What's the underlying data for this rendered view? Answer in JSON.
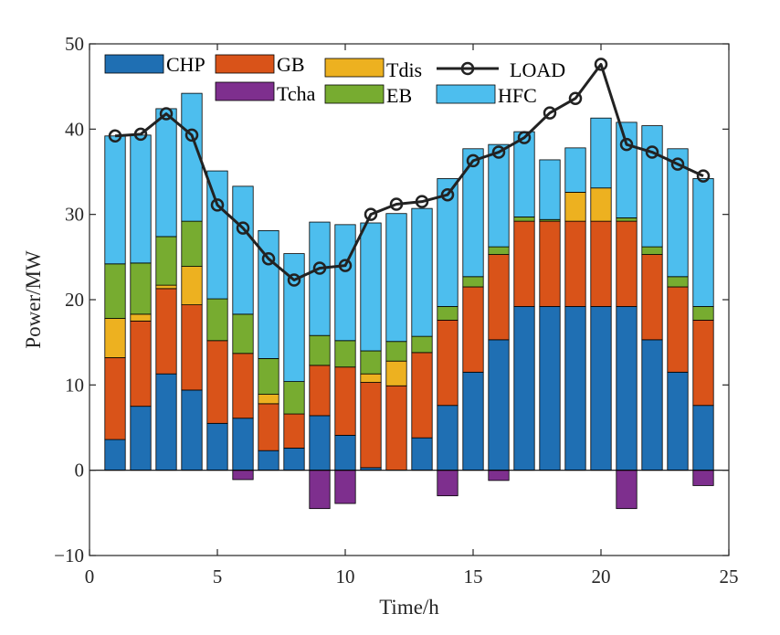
{
  "chart_data": {
    "type": "bar",
    "stacked": true,
    "title": "",
    "xlabel": "Time/h",
    "ylabel": "Power/MW",
    "xlim": [
      0,
      25
    ],
    "ylim": [
      -10,
      50
    ],
    "xticks": [
      0,
      5,
      10,
      15,
      20,
      25
    ],
    "yticks": [
      -10,
      0,
      10,
      20,
      30,
      40,
      50
    ],
    "legend_position": "top",
    "categories": [
      1,
      2,
      3,
      4,
      5,
      6,
      7,
      8,
      9,
      10,
      11,
      12,
      13,
      14,
      15,
      16,
      17,
      18,
      19,
      20,
      21,
      22,
      23,
      24
    ],
    "series": [
      {
        "name": "CHP",
        "color": "#1f6fb3",
        "values": [
          3.6,
          7.5,
          11.3,
          9.4,
          5.5,
          6.1,
          2.3,
          2.6,
          6.4,
          4.1,
          0.3,
          0,
          3.8,
          7.6,
          11.5,
          15.3,
          19.2,
          19.2,
          19.2,
          19.2,
          19.2,
          15.3,
          11.5,
          7.6
        ]
      },
      {
        "name": "GB",
        "color": "#d95319",
        "values": [
          9.6,
          10.0,
          10.0,
          10.0,
          9.7,
          7.6,
          5.5,
          4.0,
          5.9,
          8.0,
          10.0,
          9.9,
          10.0,
          10.0,
          10.0,
          10.0,
          10.0,
          10.0,
          10.0,
          10.0,
          10.0,
          10.0,
          10.0,
          10.0
        ]
      },
      {
        "name": "Tdis",
        "color": "#edb120",
        "values": [
          4.6,
          0.8,
          0.4,
          4.5,
          0,
          0,
          1.1,
          0,
          0,
          0,
          1.0,
          2.9,
          0,
          0,
          0,
          0,
          0,
          0,
          3.4,
          3.9,
          0,
          0,
          0,
          0
        ]
      },
      {
        "name": "Tcha",
        "color": "#7e2f8e",
        "values": [
          0,
          0,
          0,
          0,
          0,
          -1.1,
          0,
          0,
          -4.5,
          -3.9,
          0,
          0,
          0,
          -3.0,
          0,
          -1.2,
          0,
          0,
          0,
          0,
          -4.5,
          0,
          0,
          -1.8
        ]
      },
      {
        "name": "EB",
        "color": "#77ac30",
        "values": [
          6.4,
          6.0,
          5.7,
          5.3,
          4.9,
          4.6,
          4.2,
          3.8,
          3.5,
          3.1,
          2.7,
          2.3,
          1.9,
          1.6,
          1.2,
          0.9,
          0.5,
          0.2,
          0,
          0,
          0.4,
          0.9,
          1.2,
          1.6
        ]
      },
      {
        "name": "HFC",
        "color": "#4dbeee",
        "values": [
          15.0,
          15.0,
          15.0,
          15.0,
          15.0,
          15.0,
          15.0,
          15.0,
          13.3,
          13.6,
          15.0,
          15.0,
          15.0,
          15.0,
          15.0,
          12.0,
          10.0,
          7.0,
          5.2,
          8.2,
          11.2,
          14.2,
          15.0,
          15.0
        ]
      }
    ],
    "line": {
      "name": "LOAD",
      "color": "#222222",
      "marker": "circle",
      "values": [
        39.2,
        39.4,
        41.8,
        39.3,
        31.1,
        28.4,
        24.8,
        22.3,
        23.7,
        24.0,
        30.0,
        31.2,
        31.5,
        32.3,
        36.3,
        37.3,
        39.0,
        41.9,
        43.6,
        47.6,
        38.2,
        37.3,
        35.9,
        34.5
      ]
    }
  }
}
